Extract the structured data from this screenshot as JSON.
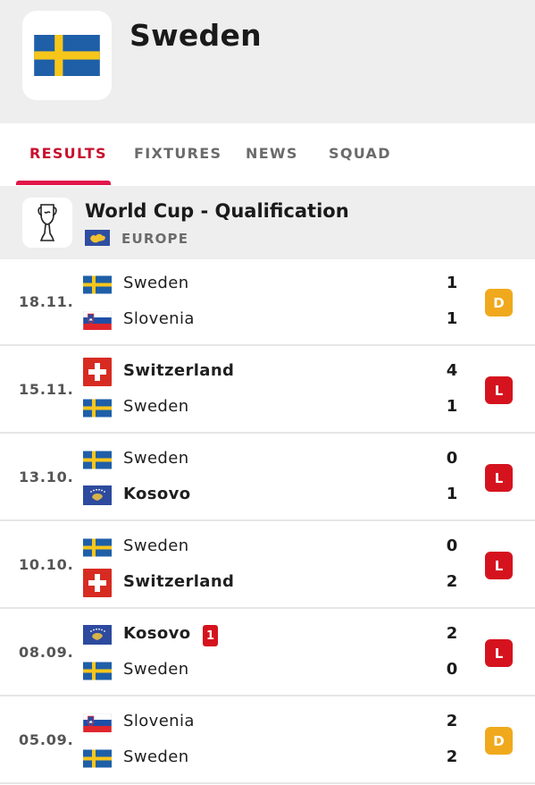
{
  "team": {
    "name": "Sweden"
  },
  "tabs": [
    {
      "label": "RESULTS",
      "active": true
    },
    {
      "label": "FIXTURES",
      "active": false
    },
    {
      "label": "NEWS",
      "active": false
    },
    {
      "label": "SQUAD",
      "active": false
    }
  ],
  "competition": {
    "name": "World Cup - Qualification",
    "region": "EUROPE",
    "icon": "trophy-icon"
  },
  "colors": {
    "accent": "#e0174a",
    "draw": "#f0a91c",
    "loss": "#d5131e"
  },
  "matches": [
    {
      "date": "18.11.",
      "home": {
        "name": "Sweden",
        "flag": "sweden",
        "score": "1",
        "winner": false
      },
      "away": {
        "name": "Slovenia",
        "flag": "slovenia",
        "score": "1",
        "winner": false
      },
      "result": "D"
    },
    {
      "date": "15.11.",
      "home": {
        "name": "Switzerland",
        "flag": "switzerland",
        "score": "4",
        "winner": true
      },
      "away": {
        "name": "Sweden",
        "flag": "sweden",
        "score": "1",
        "winner": false
      },
      "result": "L"
    },
    {
      "date": "13.10.",
      "home": {
        "name": "Sweden",
        "flag": "sweden",
        "score": "0",
        "winner": false
      },
      "away": {
        "name": "Kosovo",
        "flag": "kosovo",
        "score": "1",
        "winner": true
      },
      "result": "L"
    },
    {
      "date": "10.10.",
      "home": {
        "name": "Sweden",
        "flag": "sweden",
        "score": "0",
        "winner": false
      },
      "away": {
        "name": "Switzerland",
        "flag": "switzerland",
        "score": "2",
        "winner": true
      },
      "result": "L"
    },
    {
      "date": "08.09.",
      "home": {
        "name": "Kosovo",
        "flag": "kosovo",
        "score": "2",
        "winner": true,
        "red_cards": "1"
      },
      "away": {
        "name": "Sweden",
        "flag": "sweden",
        "score": "0",
        "winner": false
      },
      "result": "L"
    },
    {
      "date": "05.09.",
      "home": {
        "name": "Slovenia",
        "flag": "slovenia",
        "score": "2",
        "winner": false
      },
      "away": {
        "name": "Sweden",
        "flag": "sweden",
        "score": "2",
        "winner": false
      },
      "result": "D"
    }
  ]
}
